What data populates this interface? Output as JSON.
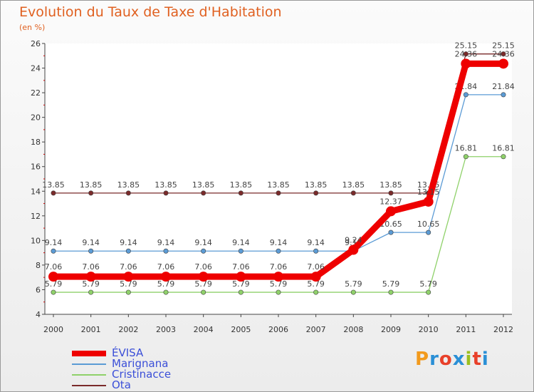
{
  "title": "Evolution du Taux de Taxe d'Habitation",
  "unit_label": "(en %)",
  "logo": {
    "letters": [
      "P",
      "r",
      "o",
      "x",
      "i",
      "t",
      "i"
    ],
    "colors": [
      "#f29a1d",
      "#2a8fd6",
      "#e8402a",
      "#2a8fd6",
      "#9bbf1f",
      "#e8402a",
      "#2a8fd6"
    ]
  },
  "chart_data": {
    "type": "line",
    "title": "Evolution du Taux de Taxe d'Habitation",
    "ylabel": "(en %)",
    "xlabel": "",
    "categories": [
      "2000",
      "2001",
      "2002",
      "2003",
      "2004",
      "2005",
      "2006",
      "2007",
      "2008",
      "2009",
      "2010",
      "2011",
      "2012"
    ],
    "y_ticks": [
      "4",
      "6",
      "8",
      "10",
      "12",
      "14",
      "16",
      "18",
      "20",
      "22",
      "24",
      "26"
    ],
    "ylim": [
      4,
      26
    ],
    "grid": false,
    "legend_position": "bottom-left",
    "series": [
      {
        "name": "Ota",
        "color": "#7a2a2a",
        "values": [
          13.85,
          13.85,
          13.85,
          13.85,
          13.85,
          13.85,
          13.85,
          13.85,
          13.85,
          13.85,
          13.85,
          25.15,
          25.15
        ],
        "labels": [
          "13.85",
          "13.85",
          "13.85",
          "13.85",
          "13.85",
          "13.85",
          "13.85",
          "13.85",
          "13.85",
          "13.85",
          "13.85",
          "25.15",
          "25.15"
        ]
      },
      {
        "name": "Marignana",
        "color": "#5b9bd5",
        "values": [
          9.14,
          9.14,
          9.14,
          9.14,
          9.14,
          9.14,
          9.14,
          9.14,
          9.14,
          10.65,
          10.65,
          21.84,
          21.84
        ],
        "labels": [
          "9.14",
          "9.14",
          "9.14",
          "9.14",
          "9.14",
          "9.14",
          "9.14",
          "9.14",
          "9.14",
          "10.65",
          "10.65",
          "21.84",
          "21.84"
        ]
      },
      {
        "name": "Cristinacce",
        "color": "#8fd16a",
        "values": [
          5.79,
          5.79,
          5.79,
          5.79,
          5.79,
          5.79,
          5.79,
          5.79,
          5.79,
          5.79,
          5.79,
          16.81,
          16.81
        ],
        "labels": [
          "5.79",
          "5.79",
          "5.79",
          "5.79",
          "5.79",
          "5.79",
          "5.79",
          "5.79",
          "5.79",
          "5.79",
          "5.79",
          "16.81",
          "16.81"
        ]
      },
      {
        "name": "ÉVISA",
        "color": "#ee0000",
        "values": [
          7.06,
          7.06,
          7.06,
          7.06,
          7.06,
          7.06,
          7.06,
          7.06,
          9.24,
          12.37,
          13.15,
          24.36,
          24.36
        ],
        "labels": [
          "7.06",
          "7.06",
          "7.06",
          "7.06",
          "7.06",
          "7.06",
          "7.06",
          "7.06",
          "9.24",
          "12.37",
          "13.15",
          "24.36",
          "24.36"
        ]
      }
    ],
    "legend_order": [
      "ÉVISA",
      "Marignana",
      "Cristinacce",
      "Ota"
    ]
  }
}
